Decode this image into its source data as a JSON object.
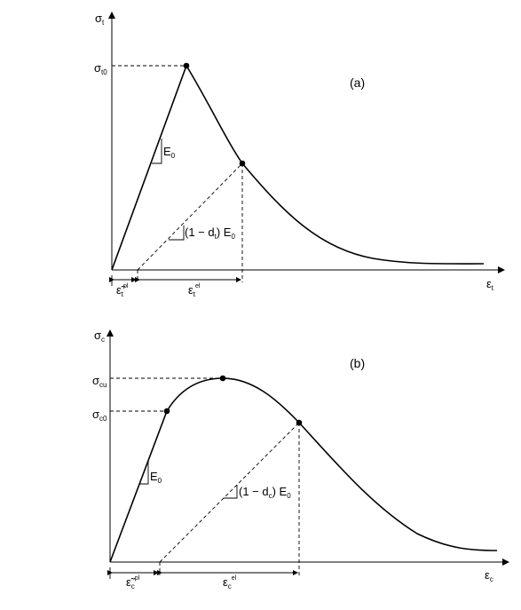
{
  "panel_a": {
    "label": "(a)",
    "y_axis": {
      "symbol": "σ",
      "sub": "t"
    },
    "x_axis": {
      "symbol": "ε",
      "sub": "t"
    },
    "peak": {
      "symbol": "σ",
      "sub": "t0"
    },
    "modulus": {
      "symbol": "E",
      "sub": "0"
    },
    "damaged_modulus": {
      "pre": "(1 − d",
      "sub": "t",
      "post": ") E",
      "sub2": "0"
    },
    "plastic_strain": {
      "symbol": "ε̃",
      "sub": "t",
      "sup": "pl"
    },
    "elastic_strain": {
      "symbol": "ε",
      "sub": "t",
      "sup": "el"
    }
  },
  "panel_b": {
    "label": "(b)",
    "y_axis": {
      "symbol": "σ",
      "sub": "c"
    },
    "x_axis": {
      "symbol": "ε",
      "sub": "c"
    },
    "ultimate": {
      "symbol": "σ",
      "sub": "cu"
    },
    "initial": {
      "symbol": "σ",
      "sub": "c0"
    },
    "modulus": {
      "symbol": "E",
      "sub": "0"
    },
    "damaged_modulus": {
      "pre": "(1 − d",
      "sub": "c",
      "post": ") E",
      "sub2": "0"
    },
    "plastic_strain": {
      "symbol": "ε̃",
      "sub": "c",
      "sup": "pl"
    },
    "elastic_strain": {
      "symbol": "ε",
      "sub": "c",
      "sup": "el"
    }
  }
}
